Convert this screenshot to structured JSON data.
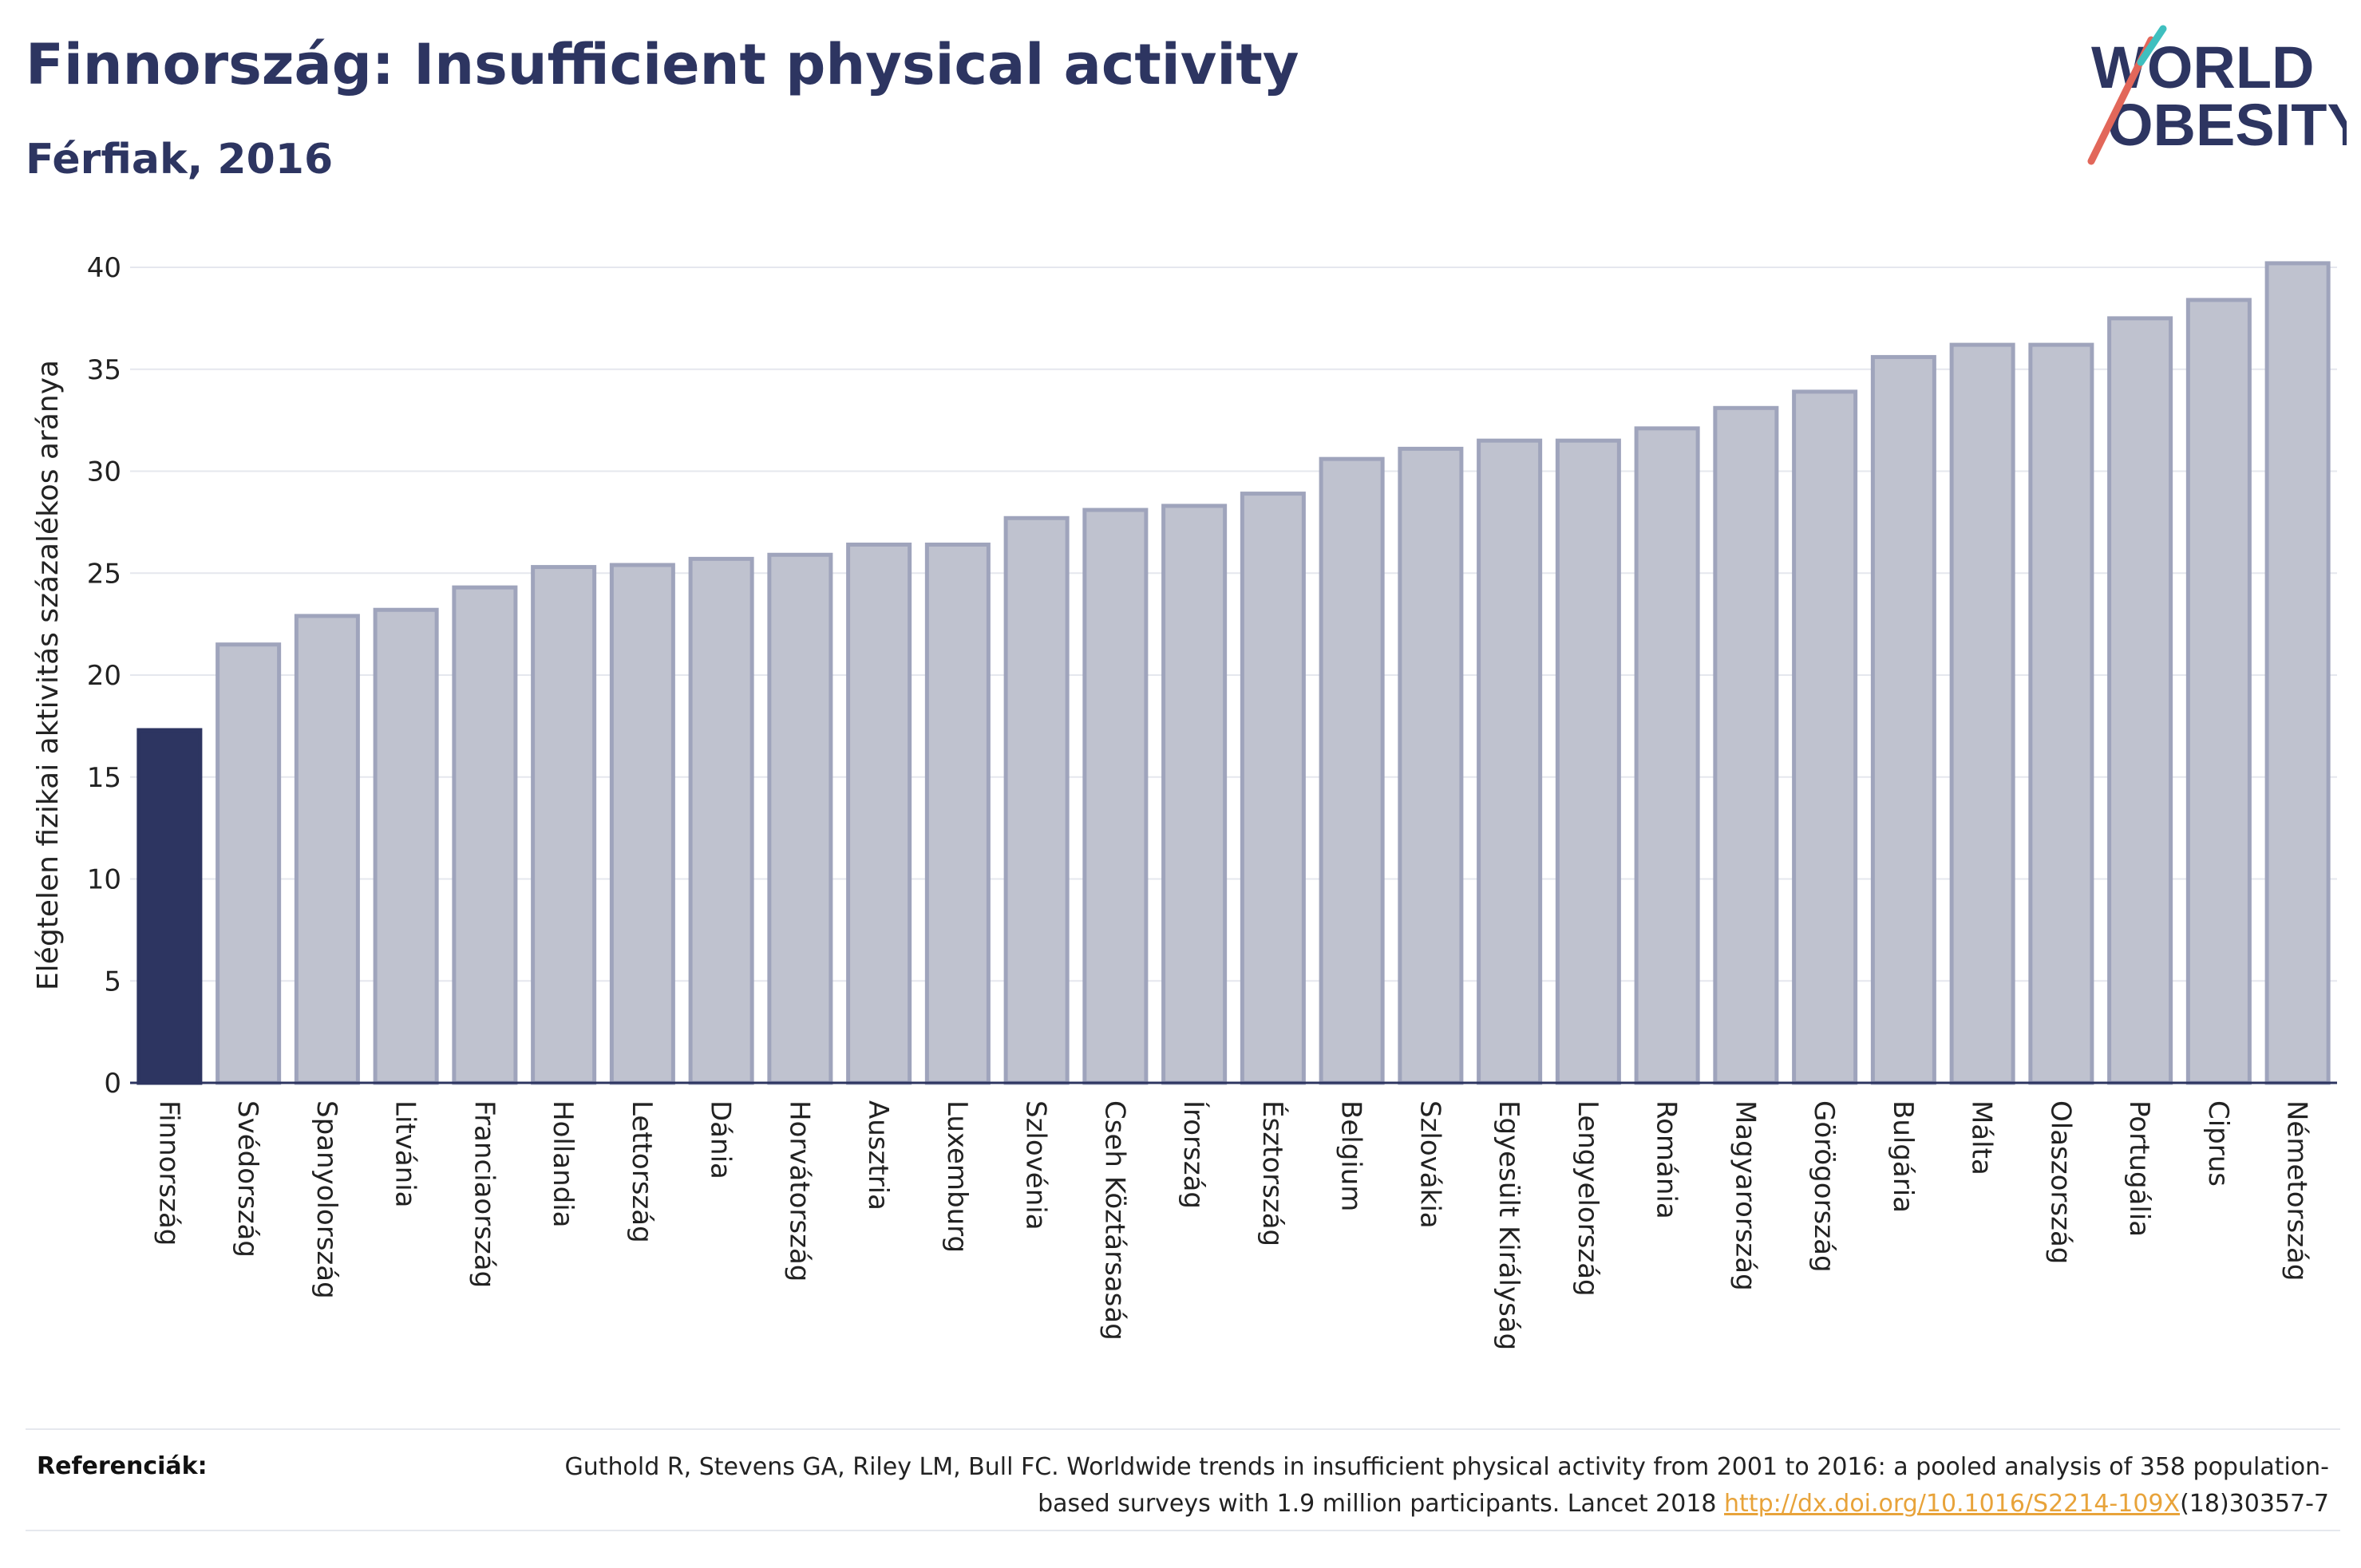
{
  "header": {
    "title": "Finnország: Insufficient physical activity",
    "subtitle": "Férfiak, 2016"
  },
  "logo": {
    "line1": "WORLD",
    "line2": "OBESITY"
  },
  "colors": {
    "highlight_bar": "#2d3561",
    "other_bar_fill": "#bfc2cf",
    "other_bar_stroke": "#9fa4bc",
    "title": "#2d3561",
    "link": "#e8a33a"
  },
  "chart_data": {
    "type": "bar",
    "title": "Finnország: Insufficient physical activity",
    "subtitle": "Férfiak, 2016",
    "ylabel": "Elégtelen fizikai aktivitás százalékos aránya",
    "xlabel": "",
    "ylim": [
      0,
      40
    ],
    "yticks": [
      0,
      5,
      10,
      15,
      20,
      25,
      30,
      35,
      40
    ],
    "grid": true,
    "highlight": "Finnország",
    "categories": [
      "Finnország",
      "Svédország",
      "Spanyolország",
      "Litvánia",
      "Franciaország",
      "Hollandia",
      "Lettország",
      "Dánia",
      "Horvátország",
      "Ausztria",
      "Luxemburg",
      "Szlovénia",
      "Cseh Köztársaság",
      "Írország",
      "Észtország",
      "Belgium",
      "Szlovákia",
      "Egyesült Királyság",
      "Lengyelország",
      "Románia",
      "Magyarország",
      "Görögország",
      "Bulgária",
      "Málta",
      "Olaszország",
      "Portugália",
      "Ciprus",
      "Németország"
    ],
    "values": [
      17.3,
      21.5,
      22.9,
      23.2,
      24.3,
      25.3,
      25.4,
      25.7,
      25.9,
      26.4,
      26.4,
      27.7,
      28.1,
      28.3,
      28.9,
      30.6,
      31.1,
      31.5,
      31.5,
      32.1,
      33.1,
      33.9,
      35.6,
      36.2,
      36.2,
      37.5,
      38.4,
      40.2
    ]
  },
  "references": {
    "label": "Referenciák:",
    "text_before": "Guthold R, Stevens GA, Riley LM, Bull FC. Worldwide trends in insufficient physical activity from 2001 to 2016: a pooled analysis of 358 population-based surveys with 1.9 million participants. Lancet 2018 ",
    "link": "http://dx.doi.org/10.1016/S2214-109X",
    "text_after": "(18)30357-7"
  }
}
